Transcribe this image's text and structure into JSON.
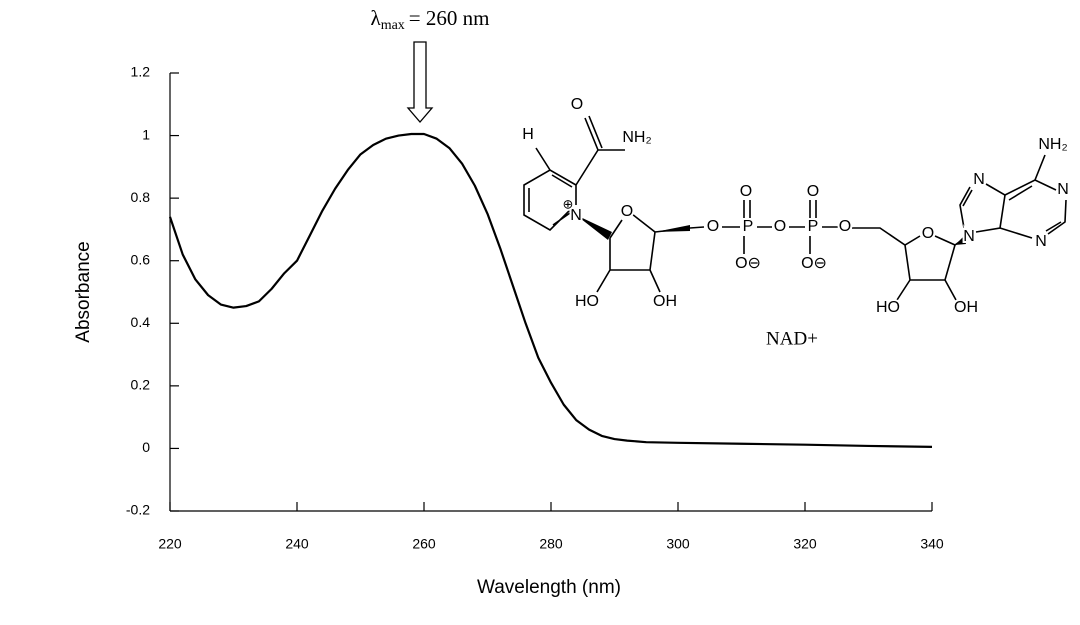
{
  "chart_data": {
    "type": "line",
    "xlabel": "Wavelength (nm)",
    "ylabel": "Absorbance",
    "annotation": {
      "symbol": "λ",
      "subscript": "max",
      "text": "= 260 nm"
    },
    "structure_name": "NAD+",
    "structure_labels": [
      "O",
      "NH₂",
      "H",
      "N",
      "⊕",
      "O",
      "HO",
      "OH",
      "O",
      "P",
      "O",
      "P",
      "O",
      "O",
      "O",
      "O⊖",
      "O⊖",
      "O",
      "N",
      "N",
      "N",
      "N",
      "NH₂",
      "HO",
      "OH"
    ],
    "x": [
      220,
      222,
      224,
      226,
      228,
      230,
      232,
      234,
      236,
      238,
      240,
      242,
      244,
      246,
      248,
      250,
      252,
      254,
      256,
      258,
      260,
      262,
      264,
      266,
      268,
      270,
      272,
      274,
      276,
      278,
      280,
      282,
      284,
      286,
      288,
      290,
      292,
      295,
      300,
      310,
      320,
      330,
      340
    ],
    "values": [
      0.74,
      0.62,
      0.54,
      0.49,
      0.46,
      0.45,
      0.455,
      0.47,
      0.51,
      0.56,
      0.6,
      0.68,
      0.76,
      0.83,
      0.89,
      0.94,
      0.97,
      0.99,
      1.0,
      1.005,
      1.005,
      0.99,
      0.96,
      0.91,
      0.84,
      0.75,
      0.64,
      0.52,
      0.4,
      0.29,
      0.21,
      0.14,
      0.09,
      0.06,
      0.04,
      0.03,
      0.025,
      0.02,
      0.018,
      0.015,
      0.012,
      0.008,
      0.005
    ],
    "color": "#000000",
    "xlim": [
      220,
      340
    ],
    "xticks": [
      220,
      240,
      260,
      280,
      300,
      320,
      340
    ],
    "ylim": [
      -0.2,
      1.2
    ],
    "yticks": [
      -0.2,
      0,
      0.2,
      0.4,
      0.6,
      0.8,
      1,
      1.2
    ]
  }
}
